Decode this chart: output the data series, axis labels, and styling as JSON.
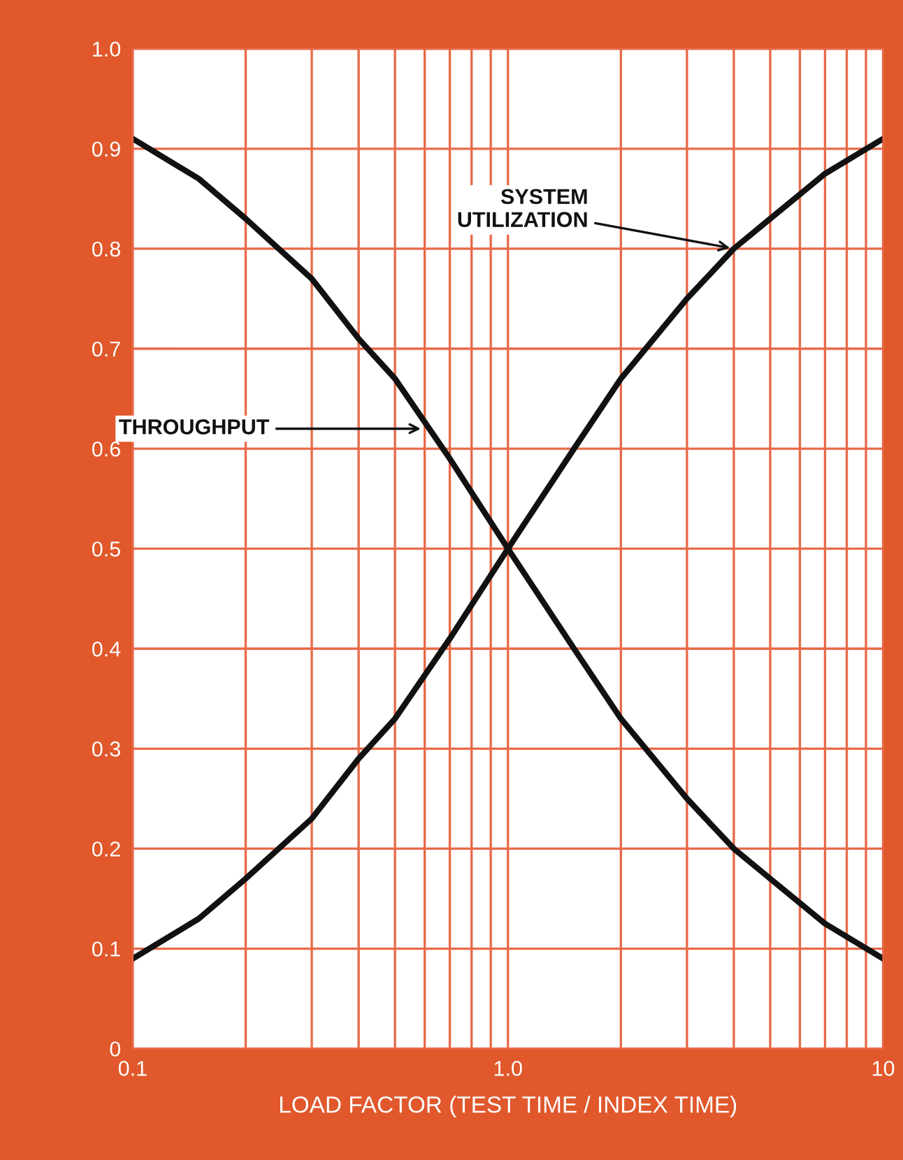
{
  "chart_data": {
    "type": "line",
    "xlabel": "LOAD FACTOR (TEST TIME / INDEX TIME)",
    "x": [
      0.1,
      0.15,
      0.2,
      0.3,
      0.4,
      0.5,
      0.7,
      1,
      1.5,
      2,
      3,
      4,
      5,
      7,
      10
    ],
    "series": [
      {
        "color": "#111111",
        "values": [
          0.91,
          0.87,
          0.83,
          0.77,
          0.71,
          0.67,
          0.59,
          0.5,
          0.4,
          0.33,
          0.25,
          0.2,
          0.17,
          0.125,
          0.09
        ]
      },
      {
        "color": "#111111",
        "values": [
          0.09,
          0.13,
          0.17,
          0.23,
          0.29,
          0.33,
          0.41,
          0.5,
          0.6,
          0.67,
          0.75,
          0.8,
          0.83,
          0.875,
          0.91
        ]
      }
    ],
    "log": "x",
    "xlim": [
      0.1,
      10
    ],
    "ylim": [
      0,
      1.0
    ],
    "xticks": [
      {
        "value": 0.1,
        "label": "0.1"
      },
      {
        "value": 0.2,
        "label": null
      },
      {
        "value": 0.3,
        "label": null
      },
      {
        "value": 0.4,
        "label": null
      },
      {
        "value": 0.5,
        "label": null
      },
      {
        "value": 0.6,
        "label": null
      },
      {
        "value": 0.7,
        "label": null
      },
      {
        "value": 0.8,
        "label": null
      },
      {
        "value": 0.9,
        "label": null
      },
      {
        "value": 1,
        "label": "1.0"
      },
      {
        "value": 2,
        "label": null
      },
      {
        "value": 3,
        "label": null
      },
      {
        "value": 4,
        "label": null
      },
      {
        "value": 5,
        "label": null
      },
      {
        "value": 6,
        "label": null
      },
      {
        "value": 7,
        "label": null
      },
      {
        "value": 8,
        "label": null
      },
      {
        "value": 9,
        "label": null
      },
      {
        "value": 10,
        "label": "10"
      }
    ],
    "yticks": [
      0,
      0.1,
      0.2,
      0.3,
      0.4,
      0.5,
      0.6,
      0.7,
      0.8,
      0.9,
      {
        "value": 1.0,
        "label": "1.0"
      }
    ],
    "grid": true,
    "marker": "none",
    "line_style": "solid",
    "annotations": [
      {
        "text": "THROUGHPUT",
        "x": 0.6,
        "y": 0.62
      },
      {
        "text": "SYSTEM\nUTILIZATION",
        "x": 4,
        "y": 0.8
      }
    ]
  }
}
